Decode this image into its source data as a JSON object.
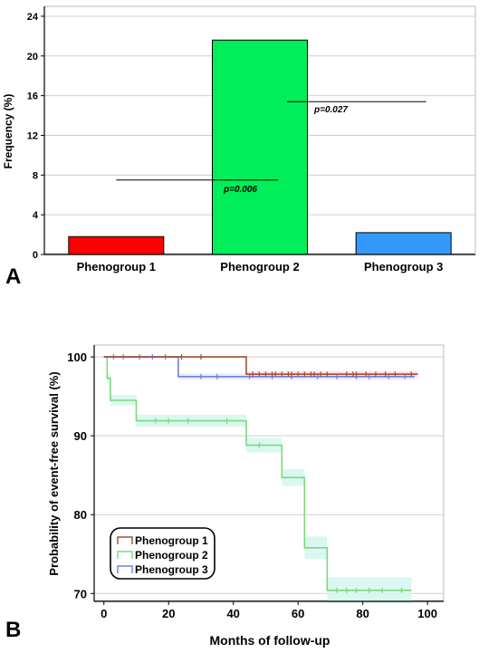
{
  "panel_a": {
    "label": "A",
    "ylabel": "Frequency (%)",
    "yticks": [
      "0",
      "4",
      "8",
      "12",
      "16",
      "20",
      "24"
    ],
    "significance": [
      {
        "text": "p=0.006",
        "from": "Phenogroup 1",
        "to": "Phenogroup 2"
      },
      {
        "text": "p=0.027",
        "from": "Phenogroup 2",
        "to": "Phenogroup 3"
      }
    ]
  },
  "panel_b": {
    "label": "B",
    "ylabel": "Probability of event-free survival (%)",
    "xlabel": "Months of follow-up",
    "xticks": [
      "0",
      "20",
      "40",
      "60",
      "80",
      "100"
    ],
    "yticks": [
      "70",
      "80",
      "90",
      "100"
    ],
    "legend": [
      "Phenogroup 1",
      "Phenogroup 2",
      "Phenogroup 3"
    ]
  },
  "colors": {
    "phenogroup1": "#ff0000",
    "phenogroup2": "#00ee5a",
    "phenogroup3": "#3399ff",
    "km1": "#a05030",
    "km2": "#7cd87c",
    "km3": "#6f7fe0",
    "band1": "#ffd9e6",
    "band2": "#d3f7ef",
    "band3": "#e3ebff"
  },
  "chart_data": [
    {
      "type": "bar",
      "title": "",
      "xlabel": "",
      "ylabel": "Frequency (%)",
      "categories": [
        "Phenogroup 1",
        "Phenogroup 2",
        "Phenogroup 3"
      ],
      "values": [
        1.8,
        21.6,
        2.2
      ],
      "ylim": [
        0,
        25
      ],
      "grid": true
    },
    {
      "type": "line",
      "title": "",
      "xlabel": "Months of follow-up",
      "ylabel": "Probability of event-free survival (%)",
      "xlim": [
        -3,
        105
      ],
      "ylim": [
        69,
        101.5
      ],
      "legend": "bottom-left",
      "grid": true,
      "series": [
        {
          "name": "Phenogroup 1",
          "steps": [
            [
              0,
              100
            ],
            [
              44,
              97.8
            ],
            [
              97,
              97.8
            ]
          ],
          "censor_x": [
            24,
            30,
            46,
            48,
            50,
            52,
            53,
            55,
            57,
            58,
            60,
            62,
            64,
            65,
            67,
            69,
            75,
            77,
            78,
            81,
            84,
            87,
            90,
            95
          ]
        },
        {
          "name": "Phenogroup 2",
          "steps": [
            [
              0,
              100
            ],
            [
              1,
              97.3
            ],
            [
              2,
              94.5
            ],
            [
              10,
              91.9
            ],
            [
              44,
              88.8
            ],
            [
              55,
              84.7
            ],
            [
              62,
              75.8
            ],
            [
              69,
              70.4
            ],
            [
              95,
              70.4
            ]
          ],
          "censor_x": [
            16,
            20,
            26,
            38,
            48,
            72,
            75,
            78,
            82,
            86,
            92
          ]
        },
        {
          "name": "Phenogroup 3",
          "steps": [
            [
              0,
              100
            ],
            [
              23,
              97.5
            ],
            [
              96,
              97.5
            ]
          ],
          "censor_x": [
            3,
            6,
            11,
            15,
            19,
            30,
            35,
            45,
            52,
            58,
            66,
            72,
            78,
            82,
            88,
            93
          ]
        }
      ]
    }
  ]
}
